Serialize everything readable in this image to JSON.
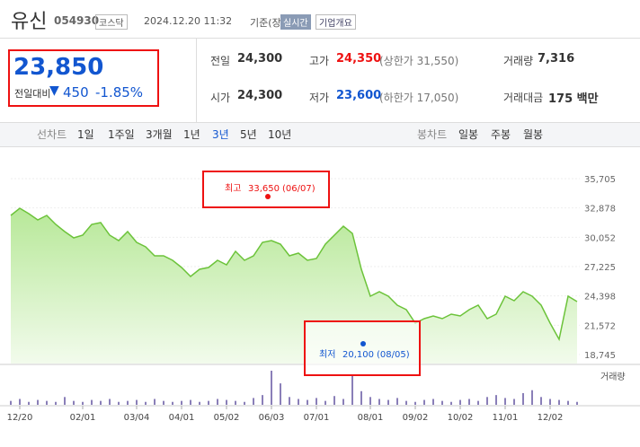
{
  "header": {
    "name": "유신",
    "code": "054930",
    "market": "코스닥",
    "datetime": "2024.12.20 11:32",
    "basis": "기준(장중)",
    "realtime": "실시간",
    "company_info": "기업개요"
  },
  "quote": {
    "price": "23,850",
    "change_label": "전일대비",
    "change": "450",
    "change_rate": "-1.85%"
  },
  "stats": [
    [
      {
        "label": "전일",
        "value": "24,300"
      },
      {
        "label": "고가",
        "value": "24,350",
        "sub": "(상한가 31,550)"
      },
      {
        "label": "거래량",
        "value": "7,316"
      }
    ],
    [
      {
        "label": "시가",
        "value": "24,300"
      },
      {
        "label": "저가",
        "value": "23,600",
        "sub": "(하한가 17,050)"
      },
      {
        "label": "거래대금",
        "value": "175 백만"
      }
    ]
  ],
  "tabs": {
    "line_label": "선차트",
    "line": [
      "1일",
      "1주일",
      "3개월",
      "1년",
      "3년",
      "5년",
      "10년"
    ],
    "candle_label": "봉차트",
    "candle": [
      "일봉",
      "주봉",
      "월봉"
    ]
  },
  "chart_data": {
    "type": "area",
    "categories": [
      null,
      "12/20",
      null,
      null,
      null,
      null,
      null,
      null,
      "02/01",
      null,
      null,
      null,
      null,
      null,
      "03/04",
      null,
      null,
      null,
      null,
      "04/01",
      null,
      null,
      null,
      null,
      "05/02",
      null,
      null,
      null,
      null,
      "06/03",
      null,
      null,
      null,
      null,
      "07/01",
      null,
      null,
      null,
      null,
      null,
      "08/01",
      null,
      null,
      null,
      null,
      "09/02",
      null,
      null,
      null,
      null,
      "10/02",
      null,
      null,
      null,
      null,
      "11/01",
      null,
      null,
      null,
      null,
      "12/02",
      null,
      null,
      null
    ],
    "series": [
      {
        "name": "종가",
        "color": "#6cc33a",
        "values": [
          32157,
          32850,
          32330,
          31725,
          32157,
          31292,
          30600,
          29994,
          30254,
          31292,
          31465,
          30254,
          29734,
          30600,
          29561,
          29129,
          28263,
          28263,
          27831,
          27139,
          26273,
          26965,
          27139,
          27831,
          27398,
          28696,
          27831,
          28263,
          29561,
          29734,
          29388,
          28263,
          28523,
          27831,
          28004,
          29388,
          30254,
          31119,
          30427,
          26965,
          24370,
          24802,
          24370,
          23504,
          23072,
          21774,
          22206,
          22466,
          22206,
          22639,
          22466,
          23072,
          23504,
          22206,
          22639,
          24370,
          23937,
          24802,
          24370,
          23504,
          21774,
          20216,
          24370,
          23850
        ]
      }
    ],
    "volume": {
      "label": "거래량",
      "color": "#8a7fb8",
      "values": [
        4,
        6,
        3,
        5,
        4,
        3,
        8,
        4,
        3,
        5,
        4,
        6,
        3,
        4,
        5,
        3,
        6,
        4,
        3,
        4,
        5,
        3,
        4,
        6,
        5,
        4,
        3,
        7,
        10,
        35,
        22,
        8,
        6,
        5,
        7,
        4,
        9,
        6,
        30,
        14,
        8,
        6,
        5,
        7,
        4,
        3,
        5,
        6,
        4,
        3,
        5,
        6,
        4,
        8,
        10,
        7,
        6,
        12,
        15,
        8,
        6,
        5,
        4,
        3
      ]
    },
    "ylim": [
      18745,
      35705
    ],
    "yticks": [
      {
        "value": 18745,
        "label": "18,745"
      },
      {
        "value": 21572,
        "label": "21,572"
      },
      {
        "value": 24398,
        "label": "24,398"
      },
      {
        "value": 27225,
        "label": "27,225"
      },
      {
        "value": 30052,
        "label": "30,052"
      },
      {
        "value": 32878,
        "label": "32,878"
      },
      {
        "value": 35705,
        "label": "35,705"
      }
    ],
    "grid": true,
    "annotations": [
      {
        "label": "최고",
        "value": "33,650",
        "date": "(06/07)"
      },
      {
        "label": "최저",
        "value": "20,100",
        "date": "(08/05)"
      }
    ]
  }
}
